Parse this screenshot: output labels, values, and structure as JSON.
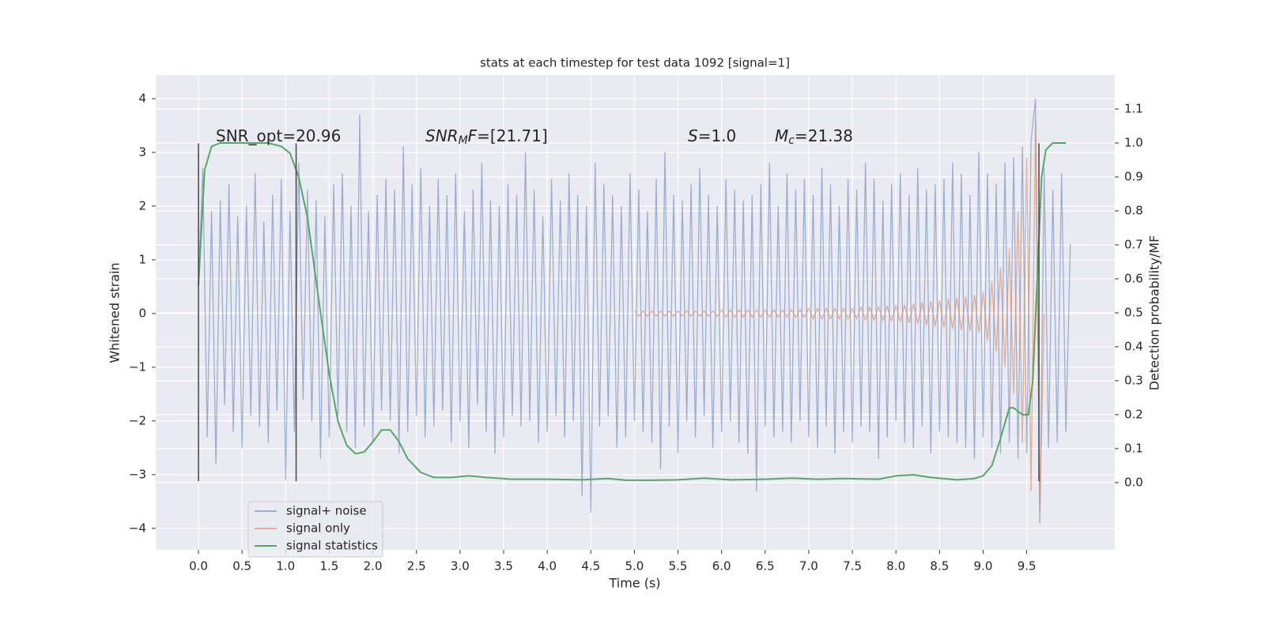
{
  "chart_data": {
    "type": "line",
    "title": "stats at each timestep for test data 1092 [signal=1]",
    "xlabel": "Time (s)",
    "ylabel": "Whitened strain",
    "y2label": "Detection probability/MF",
    "xlim": [
      -0.49,
      10.51
    ],
    "ylim": [
      -4.4,
      4.44
    ],
    "y2lim": [
      -0.198,
      1.2
    ],
    "xticks": [
      {
        "value": 0,
        "label": "0.0"
      },
      0.5,
      {
        "value": 1,
        "label": "1.0"
      },
      1.5,
      {
        "value": 2,
        "label": "2.0"
      },
      2.5,
      {
        "value": 3,
        "label": "3.0"
      },
      3.5,
      {
        "value": 4,
        "label": "4.0"
      },
      4.5,
      {
        "value": 5,
        "label": "5.0"
      },
      5.5,
      {
        "value": 6,
        "label": "6.0"
      },
      6.5,
      {
        "value": 7,
        "label": "7.0"
      },
      7.5,
      {
        "value": 8,
        "label": "8.0"
      },
      8.5,
      {
        "value": 9,
        "label": "9.0"
      },
      9.5
    ],
    "yticks": [
      {
        "value": -4,
        "label": "−4"
      },
      {
        "value": -3,
        "label": "−3"
      },
      {
        "value": -2,
        "label": "−2"
      },
      {
        "value": -1,
        "label": "−1"
      },
      0,
      1,
      2,
      3,
      4
    ],
    "y2ticks": [
      {
        "value": 0,
        "label": "0.0"
      },
      0.1,
      0.2,
      0.3,
      0.4,
      0.5,
      0.6,
      0.7,
      0.8,
      0.9,
      {
        "value": 1,
        "label": "1.0"
      },
      1.1
    ],
    "grid": true,
    "legend": "lower left",
    "annotations": [
      [
        {
          "text": "SNR_opt=20.96"
        }
      ],
      [
        {
          "text": "SNR",
          "italic": true
        },
        {
          "text": "M",
          "italic": true,
          "sub": true
        },
        {
          "text": "F",
          "italic": true
        },
        {
          "text": "=[21.71]"
        }
      ],
      [
        {
          "text": "S",
          "italic": true
        },
        {
          "text": "=1.0"
        }
      ],
      [
        {
          "text": "M",
          "italic": true
        },
        {
          "text": "c",
          "italic": true,
          "sub": true
        },
        {
          "text": "=21.38"
        }
      ]
    ],
    "vlines": {
      "x": [
        0,
        1.12,
        9.64
      ],
      "ymin": -3.12,
      "ymax": 3.17,
      "color": "#444444"
    },
    "series": [
      {
        "name": "signal+ noise",
        "color": "#4c72b0",
        "opacity": 0.5,
        "x": [
          0,
          0.05,
          0.1,
          0.15,
          0.2,
          0.25,
          0.3,
          0.35,
          0.4,
          0.45,
          0.5,
          0.55,
          0.6,
          0.65,
          0.7,
          0.75,
          0.8,
          0.85,
          0.9,
          0.95,
          1,
          1.05,
          1.1,
          1.15,
          1.2,
          1.25,
          1.3,
          1.35,
          1.4,
          1.45,
          1.5,
          1.55,
          1.6,
          1.65,
          1.7,
          1.75,
          1.8,
          1.85,
          1.9,
          1.95,
          2,
          2.05,
          2.1,
          2.15,
          2.2,
          2.25,
          2.3,
          2.35,
          2.4,
          2.45,
          2.5,
          2.55,
          2.6,
          2.65,
          2.7,
          2.75,
          2.8,
          2.85,
          2.9,
          2.95,
          3,
          3.05,
          3.1,
          3.15,
          3.2,
          3.25,
          3.3,
          3.35,
          3.4,
          3.45,
          3.5,
          3.55,
          3.6,
          3.65,
          3.7,
          3.75,
          3.8,
          3.85,
          3.9,
          3.95,
          4,
          4.05,
          4.1,
          4.15,
          4.2,
          4.25,
          4.3,
          4.35,
          4.4,
          4.45,
          4.5,
          4.55,
          4.6,
          4.65,
          4.7,
          4.75,
          4.8,
          4.85,
          4.9,
          4.95,
          5,
          5.05,
          5.1,
          5.15,
          5.2,
          5.25,
          5.3,
          5.35,
          5.4,
          5.45,
          5.5,
          5.55,
          5.6,
          5.65,
          5.7,
          5.75,
          5.8,
          5.85,
          5.9,
          5.95,
          6,
          6.05,
          6.1,
          6.15,
          6.2,
          6.25,
          6.3,
          6.35,
          6.4,
          6.45,
          6.5,
          6.55,
          6.6,
          6.65,
          6.7,
          6.75,
          6.8,
          6.85,
          6.9,
          6.95,
          7,
          7.05,
          7.1,
          7.15,
          7.2,
          7.25,
          7.3,
          7.35,
          7.4,
          7.45,
          7.5,
          7.55,
          7.6,
          7.65,
          7.7,
          7.75,
          7.8,
          7.85,
          7.9,
          7.95,
          8,
          8.05,
          8.1,
          8.15,
          8.2,
          8.25,
          8.3,
          8.35,
          8.4,
          8.45,
          8.5,
          8.55,
          8.6,
          8.65,
          8.7,
          8.75,
          8.8,
          8.85,
          8.9,
          8.95,
          9,
          9.05,
          9.1,
          9.15,
          9.2,
          9.25,
          9.3,
          9.35,
          9.4,
          9.45,
          9.5,
          9.55,
          9.6,
          9.65,
          9.7,
          9.75,
          9.8,
          9.85,
          9.9,
          9.95,
          10
        ],
        "values": [
          0.6,
          2.7,
          -2.3,
          1.9,
          -2.8,
          2.1,
          -1.7,
          2.4,
          -2.2,
          1.8,
          -2.5,
          2.0,
          -1.9,
          2.6,
          -2.1,
          1.7,
          -2.4,
          2.2,
          -1.8,
          2.5,
          -3.1,
          1.9,
          -2.2,
          2.8,
          -1.6,
          2.3,
          -2.0,
          2.1,
          -2.7,
          1.8,
          -2.3,
          2.4,
          -1.9,
          2.6,
          -2.2,
          2.0,
          -2.5,
          3.7,
          -2.1,
          1.9,
          -2.4,
          2.2,
          -1.8,
          2.5,
          -2.0,
          2.3,
          -2.6,
          3.1,
          -2.2,
          2.4,
          -1.9,
          2.7,
          -2.3,
          2.0,
          -2.1,
          2.5,
          -1.8,
          2.2,
          -2.4,
          2.6,
          -2.0,
          1.9,
          -2.5,
          2.3,
          -1.7,
          2.8,
          -2.2,
          2.1,
          -2.6,
          2.0,
          -2.3,
          2.4,
          -1.9,
          2.2,
          -2.1,
          3.0,
          -2.0,
          2.3,
          -2.4,
          1.8,
          -2.2,
          2.5,
          -1.9,
          2.1,
          -2.3,
          2.6,
          -2.0,
          2.2,
          -3.4,
          2.0,
          -3.7,
          2.8,
          -2.1,
          2.4,
          -1.9,
          2.2,
          -2.5,
          2.0,
          -2.3,
          2.6,
          -2.0,
          2.3,
          -2.2,
          1.9,
          -2.4,
          2.5,
          -2.9,
          3.0,
          -2.1,
          2.2,
          -2.6,
          2.1,
          -2.0,
          2.4,
          -2.3,
          2.7,
          -1.9,
          2.2,
          -2.5,
          2.0,
          -2.2,
          2.5,
          -2.0,
          2.3,
          -2.4,
          2.1,
          -2.6,
          2.2,
          -3.3,
          2.4,
          -2.1,
          2.8,
          -2.3,
          2.0,
          -2.2,
          2.6,
          -2.4,
          2.3,
          -2.0,
          2.5,
          -2.3,
          2.2,
          -2.5,
          2.7,
          -2.1,
          2.4,
          -2.6,
          2.0,
          -2.2,
          2.5,
          -2.4,
          2.3,
          -2.1,
          2.8,
          -2.2,
          2.5,
          -2.7,
          2.1,
          -2.3,
          2.4,
          -2.0,
          2.6,
          -2.4,
          2.2,
          -2.5,
          2.7,
          -2.1,
          2.3,
          -2.6,
          2.4,
          -2.2,
          2.5,
          -2.3,
          2.8,
          -2.4,
          2.6,
          -2.5,
          2.2,
          -2.7,
          3.0,
          -2.3,
          2.6,
          -2.5,
          2.4,
          -2.6,
          2.8,
          -2.4,
          2.9,
          -2.7,
          3.1,
          -2.6,
          3.2,
          4.0,
          -3.9,
          2.7,
          -2.5,
          2.3,
          -2.4,
          2.6,
          -2.2,
          1.3
        ]
      },
      {
        "name": "signal only",
        "color": "#dd8452",
        "opacity": 0.6,
        "x": [
          5,
          5.05,
          5.1,
          5.15,
          5.2,
          5.25,
          5.3,
          5.35,
          5.4,
          5.45,
          5.5,
          5.55,
          5.6,
          5.65,
          5.7,
          5.75,
          5.8,
          5.85,
          5.9,
          5.95,
          6,
          6.05,
          6.1,
          6.15,
          6.2,
          6.25,
          6.3,
          6.35,
          6.4,
          6.45,
          6.5,
          6.55,
          6.6,
          6.65,
          6.7,
          6.75,
          6.8,
          6.85,
          6.9,
          6.95,
          7,
          7.05,
          7.1,
          7.15,
          7.2,
          7.25,
          7.3,
          7.35,
          7.4,
          7.45,
          7.5,
          7.55,
          7.6,
          7.65,
          7.7,
          7.75,
          7.8,
          7.85,
          7.9,
          7.95,
          8,
          8.05,
          8.1,
          8.15,
          8.2,
          8.25,
          8.3,
          8.35,
          8.4,
          8.45,
          8.5,
          8.55,
          8.6,
          8.65,
          8.7,
          8.75,
          8.8,
          8.85,
          8.9,
          8.95,
          9,
          9.05,
          9.1,
          9.15,
          9.2,
          9.25,
          9.3,
          9.35,
          9.4,
          9.45,
          9.5,
          9.55,
          9.6,
          9.65,
          9.7
        ],
        "values": [
          0.05,
          -0.05,
          0.05,
          -0.05,
          0.05,
          -0.05,
          0.05,
          -0.05,
          0.05,
          -0.05,
          0.05,
          -0.05,
          0.05,
          -0.05,
          0.05,
          -0.05,
          0.05,
          -0.05,
          0.05,
          -0.05,
          0.07,
          -0.07,
          0.07,
          -0.07,
          0.07,
          -0.07,
          0.07,
          -0.07,
          0.07,
          -0.07,
          0.07,
          -0.07,
          0.07,
          -0.07,
          0.07,
          -0.07,
          0.07,
          -0.07,
          0.07,
          -0.07,
          0.1,
          -0.1,
          0.1,
          -0.1,
          0.1,
          -0.1,
          0.1,
          -0.1,
          0.1,
          -0.1,
          0.1,
          -0.1,
          0.12,
          -0.12,
          0.12,
          -0.12,
          0.13,
          -0.13,
          0.14,
          -0.14,
          0.15,
          -0.15,
          0.16,
          -0.17,
          0.18,
          -0.19,
          0.2,
          -0.21,
          0.22,
          -0.23,
          0.24,
          -0.25,
          0.27,
          -0.28,
          0.29,
          -0.3,
          0.31,
          -0.32,
          0.34,
          -0.35,
          0.4,
          -0.5,
          0.6,
          -0.7,
          0.85,
          -1.0,
          1.2,
          -1.5,
          1.9,
          -2.4,
          2.9,
          -3.3,
          3.6,
          -3.7,
          0
        ]
      },
      {
        "name": "signal statistics",
        "color": "#55a868",
        "opacity": 1,
        "axis": "y2",
        "x": [
          0,
          0.07,
          0.15,
          0.25,
          0.4,
          0.6,
          0.8,
          0.95,
          1.05,
          1.15,
          1.25,
          1.4,
          1.5,
          1.6,
          1.7,
          1.8,
          1.9,
          2.0,
          2.1,
          2.2,
          2.3,
          2.4,
          2.55,
          2.7,
          2.9,
          3.1,
          3.3,
          3.6,
          4.0,
          4.4,
          4.7,
          4.9,
          5.2,
          5.5,
          5.8,
          6.1,
          6.5,
          6.8,
          7.1,
          7.4,
          7.8,
          8.0,
          8.2,
          8.4,
          8.7,
          8.9,
          9.0,
          9.1,
          9.2,
          9.3,
          9.35,
          9.45,
          9.52,
          9.57,
          9.62,
          9.67,
          9.72,
          9.8,
          9.95
        ],
        "values": [
          0.58,
          0.92,
          0.99,
          1.0,
          1.0,
          1.0,
          1.0,
          0.99,
          0.97,
          0.9,
          0.78,
          0.5,
          0.32,
          0.18,
          0.11,
          0.085,
          0.09,
          0.12,
          0.155,
          0.155,
          0.12,
          0.07,
          0.03,
          0.015,
          0.015,
          0.02,
          0.015,
          0.01,
          0.01,
          0.008,
          0.012,
          0.007,
          0.007,
          0.008,
          0.013,
          0.008,
          0.01,
          0.013,
          0.01,
          0.012,
          0.01,
          0.02,
          0.023,
          0.015,
          0.008,
          0.012,
          0.02,
          0.05,
          0.13,
          0.22,
          0.22,
          0.2,
          0.2,
          0.3,
          0.6,
          0.9,
          0.98,
          1.0,
          1.0
        ]
      }
    ]
  }
}
